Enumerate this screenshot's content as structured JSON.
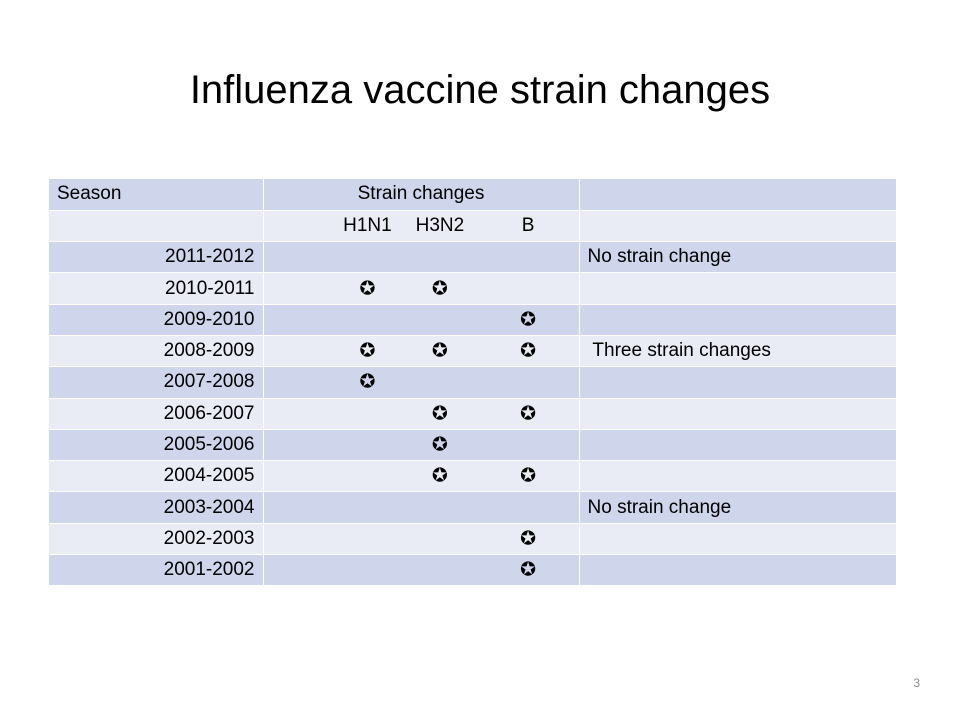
{
  "slide": {
    "title": "Influenza vaccine strain changes",
    "page_number": "3"
  },
  "table": {
    "header": {
      "season": "Season",
      "strain_changes": "Strain changes",
      "extra": ""
    },
    "subheader": {
      "h1n1": "H1N1",
      "h3n2": "H3N2",
      "b": "B"
    },
    "star_glyph": "✪",
    "rows": [
      {
        "season": "2011-2012",
        "h1n1": false,
        "h3n2": false,
        "b": false,
        "note": "No strain change"
      },
      {
        "season": "2010-2011",
        "h1n1": true,
        "h3n2": true,
        "b": false,
        "note": ""
      },
      {
        "season": "2009-2010",
        "h1n1": false,
        "h3n2": false,
        "b": true,
        "note": ""
      },
      {
        "season": "2008-2009",
        "h1n1": true,
        "h3n2": true,
        "b": true,
        "note": " Three strain changes"
      },
      {
        "season": "2007-2008",
        "h1n1": true,
        "h3n2": false,
        "b": false,
        "note": ""
      },
      {
        "season": "2006-2007",
        "h1n1": false,
        "h3n2": true,
        "b": true,
        "note": ""
      },
      {
        "season": "2005-2006",
        "h1n1": false,
        "h3n2": true,
        "b": false,
        "note": ""
      },
      {
        "season": "2004-2005",
        "h1n1": false,
        "h3n2": true,
        "b": true,
        "note": ""
      },
      {
        "season": "2003-2004",
        "h1n1": false,
        "h3n2": false,
        "b": false,
        "note": "No strain change"
      },
      {
        "season": "2002-2003",
        "h1n1": false,
        "h3n2": false,
        "b": true,
        "note": ""
      },
      {
        "season": "2001-2002",
        "h1n1": false,
        "h3n2": false,
        "b": true,
        "note": ""
      }
    ],
    "colors": {
      "header_band": "#cfd5ea",
      "alt_band": "#e9ebf5",
      "grid": "#ffffff"
    }
  }
}
